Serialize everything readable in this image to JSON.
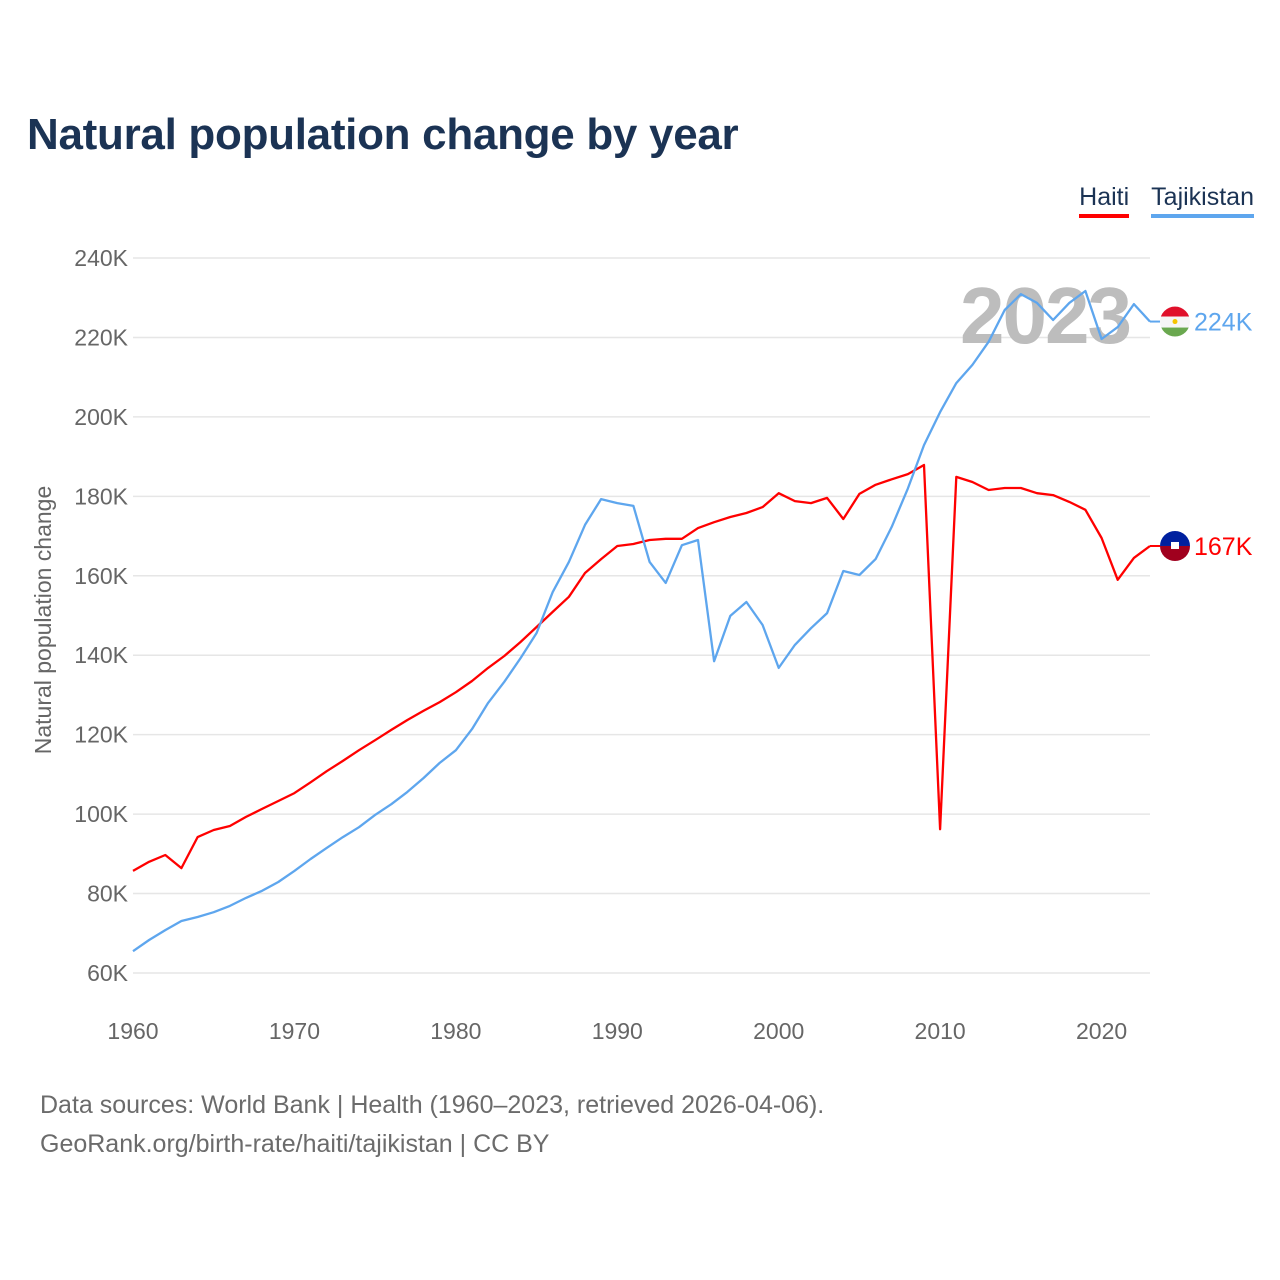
{
  "chart_data": {
    "type": "line",
    "title": "Natural population change by year",
    "xlabel": "",
    "ylabel": "Natural population change",
    "xlim": [
      1960,
      2023
    ],
    "ylim": [
      60000,
      240000
    ],
    "y_ticks": [
      60000,
      80000,
      100000,
      120000,
      140000,
      160000,
      180000,
      200000,
      220000,
      240000
    ],
    "y_tick_labels": [
      "60K",
      "80K",
      "100K",
      "120K",
      "140K",
      "160K",
      "180K",
      "200K",
      "220K",
      "240K"
    ],
    "x_ticks": [
      1960,
      1970,
      1980,
      1990,
      2000,
      2010,
      2020
    ],
    "x_tick_labels": [
      "1960",
      "1970",
      "1980",
      "1990",
      "2000",
      "2010",
      "2020"
    ],
    "grid": true,
    "legend_position": "top-right",
    "year_watermark": "2023",
    "x": [
      1960,
      1961,
      1962,
      1963,
      1964,
      1965,
      1966,
      1967,
      1968,
      1969,
      1970,
      1971,
      1972,
      1973,
      1974,
      1975,
      1976,
      1977,
      1978,
      1979,
      1980,
      1981,
      1982,
      1983,
      1984,
      1985,
      1986,
      1987,
      1988,
      1989,
      1990,
      1991,
      1992,
      1993,
      1994,
      1995,
      1996,
      1997,
      1998,
      1999,
      2000,
      2001,
      2002,
      2003,
      2004,
      2005,
      2006,
      2007,
      2008,
      2009,
      2010,
      2011,
      2012,
      2013,
      2014,
      2015,
      2016,
      2017,
      2018,
      2019,
      2020,
      2021,
      2022,
      2023
    ],
    "series": [
      {
        "name": "Haiti",
        "color": "#ff0000",
        "end_label": "167K",
        "values": [
          85700,
          88000,
          89700,
          86400,
          94200,
          96000,
          97000,
          99300,
          101300,
          103300,
          105300,
          108000,
          110800,
          113400,
          116100,
          118600,
          121200,
          123700,
          126000,
          128200,
          130700,
          133500,
          136800,
          139800,
          143300,
          147100,
          150900,
          154700,
          160700,
          164200,
          167500,
          168000,
          169000,
          169300,
          169300,
          172000,
          173500,
          174800,
          175800,
          177300,
          180800,
          178800,
          178300,
          179600,
          174300,
          180600,
          182900,
          184300,
          185600,
          187900,
          96200,
          184900,
          183600,
          181600,
          182100,
          182100,
          180800,
          180300,
          178600,
          176600,
          169500,
          159000,
          164500,
          167500
        ]
      },
      {
        "name": "Tajikistan",
        "color": "#5ea6ee",
        "end_label": "224K",
        "values": [
          65500,
          68300,
          70800,
          73100,
          74100,
          75300,
          76900,
          78900,
          80700,
          82900,
          85700,
          88700,
          91500,
          94200,
          96700,
          99800,
          102500,
          105600,
          109100,
          112900,
          116100,
          121400,
          128000,
          133300,
          139200,
          145600,
          155900,
          163500,
          172800,
          179300,
          178300,
          177600,
          163500,
          158200,
          167700,
          169000,
          138500,
          149900,
          153400,
          147600,
          136800,
          142600,
          146800,
          150600,
          161200,
          160200,
          164200,
          172300,
          182000,
          192900,
          201200,
          208500,
          213100,
          218900,
          226900,
          230900,
          228700,
          224400,
          228700,
          231700,
          219600,
          222600,
          228400,
          224000
        ]
      }
    ]
  },
  "footer": {
    "line1": "Data sources: World Bank | Health (1960–2023, retrieved 2026-04-06).",
    "line2": "GeoRank.org/birth-rate/haiti/tajikistan | CC BY"
  }
}
